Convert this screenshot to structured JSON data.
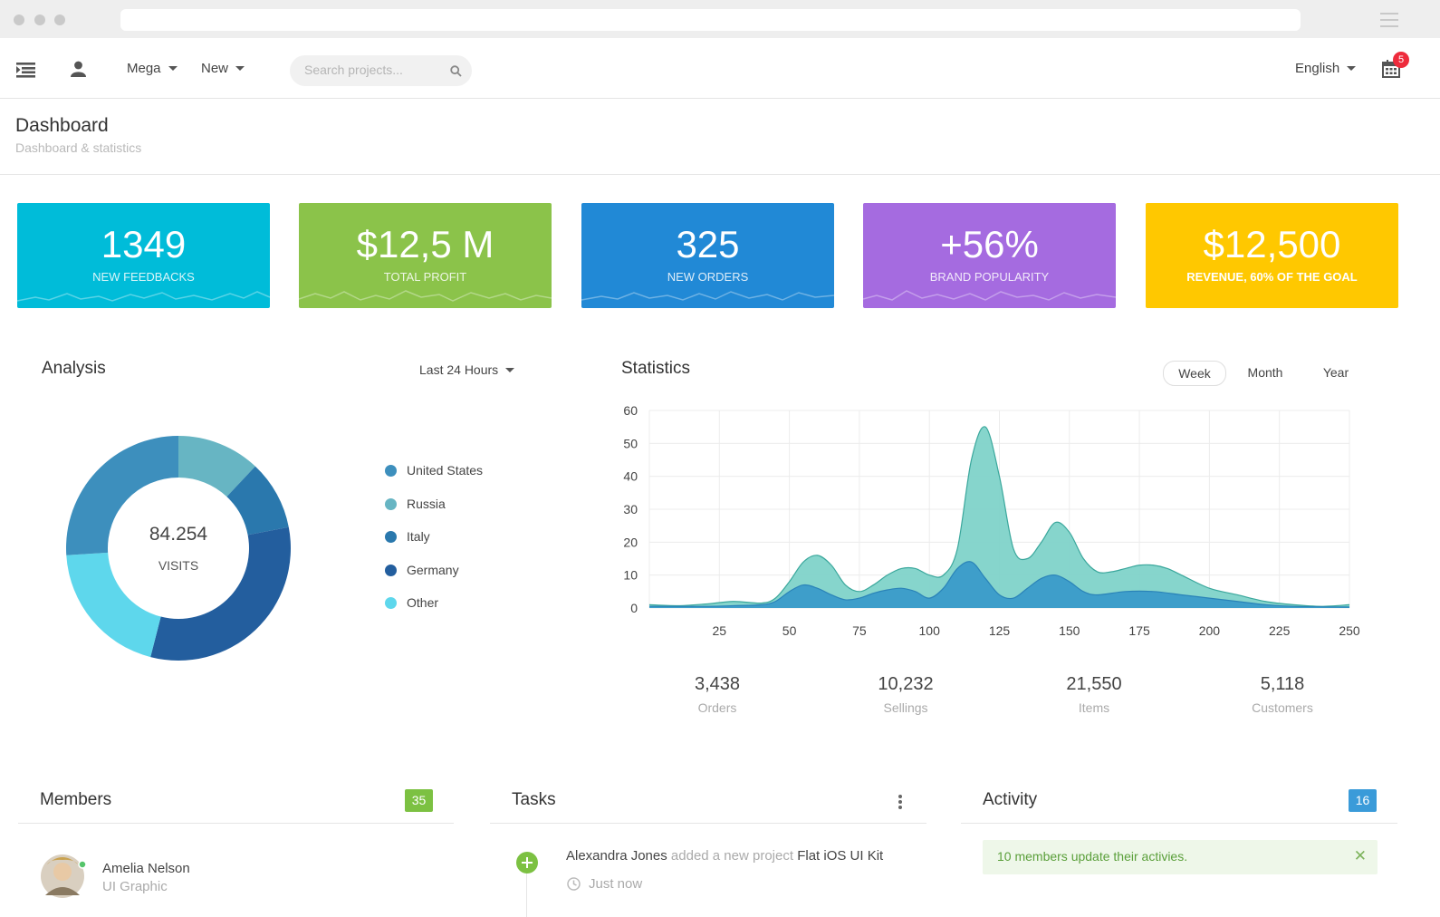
{
  "nav": {
    "mega_label": "Mega",
    "new_label": "New",
    "search_placeholder": "Search projects...",
    "language": "English",
    "calendar_badge": "5"
  },
  "page": {
    "title": "Dashboard",
    "subtitle": "Dashboard & statistics"
  },
  "stat_cards": [
    {
      "value": "1349",
      "label": "New Feedbacks",
      "color": "#00bcd9"
    },
    {
      "value": "$12,5 M",
      "label": "Total Profit",
      "color": "#8bc34a"
    },
    {
      "value": "325",
      "label": "New Orders",
      "color": "#2189d6"
    },
    {
      "value": "+56%",
      "label": "Brand Popularity",
      "color": "#a56be0"
    },
    {
      "value": "$12,500",
      "label": "Revenue, 60% of the goal",
      "color": "#ffc800"
    }
  ],
  "analysis": {
    "title": "Analysis",
    "range": "Last 24 Hours",
    "center_value": "84.254",
    "center_label": "VISITS",
    "legend": [
      {
        "label": "United States",
        "color": "#3d8fbd"
      },
      {
        "label": "Russia",
        "color": "#67b5c3"
      },
      {
        "label": "Italy",
        "color": "#2a78ad"
      },
      {
        "label": "Germany",
        "color": "#235e9e"
      },
      {
        "label": "Other",
        "color": "#5ed7ec"
      }
    ]
  },
  "statistics": {
    "title": "Statistics",
    "tabs": [
      "Week",
      "Month",
      "Year"
    ],
    "active_tab": "Week",
    "summary": [
      {
        "value": "3,438",
        "label": "Orders"
      },
      {
        "value": "10,232",
        "label": "Sellings"
      },
      {
        "value": "21,550",
        "label": "Items"
      },
      {
        "value": "5,118",
        "label": "Customers"
      }
    ]
  },
  "members": {
    "title": "Members",
    "count": "35",
    "items": [
      {
        "name": "Amelia Nelson",
        "role": "UI Graphic"
      }
    ]
  },
  "tasks": {
    "title": "Tasks",
    "items": [
      {
        "user": "Alexandra Jones",
        "action": "added a new project",
        "target": "Flat iOS UI Kit",
        "time": "Just now"
      }
    ]
  },
  "activity": {
    "title": "Activity",
    "count": "16",
    "alert": "10 members update their activies."
  },
  "chart_data": [
    {
      "type": "pie",
      "labels": [
        "United States",
        "Russia",
        "Italy",
        "Germany",
        "Other"
      ],
      "values": [
        26,
        12,
        10,
        32,
        20
      ],
      "colors": [
        "#3d8fbd",
        "#67b5c3",
        "#2a78ad",
        "#235e9e",
        "#5ed7ec"
      ]
    },
    {
      "type": "area",
      "xlim": [
        0,
        250
      ],
      "ylim": [
        0,
        60
      ],
      "xticks": [
        25,
        50,
        75,
        100,
        125,
        150,
        175,
        200,
        225,
        250
      ],
      "yticks": [
        0,
        10,
        20,
        30,
        40,
        50,
        60
      ],
      "grid": true,
      "series": [
        {
          "color": "#7fd3c9",
          "points": [
            [
              0,
              1
            ],
            [
              10,
              0.7
            ],
            [
              20,
              1.2
            ],
            [
              30,
              2
            ],
            [
              40,
              1.5
            ],
            [
              45,
              3
            ],
            [
              50,
              8
            ],
            [
              55,
              14
            ],
            [
              60,
              16
            ],
            [
              65,
              13
            ],
            [
              70,
              7
            ],
            [
              75,
              5
            ],
            [
              80,
              7
            ],
            [
              85,
              10
            ],
            [
              90,
              12
            ],
            [
              95,
              12
            ],
            [
              100,
              10
            ],
            [
              105,
              10
            ],
            [
              110,
              18
            ],
            [
              115,
              45
            ],
            [
              120,
              55
            ],
            [
              125,
              40
            ],
            [
              130,
              18
            ],
            [
              135,
              15
            ],
            [
              140,
              20
            ],
            [
              145,
              26
            ],
            [
              150,
              23
            ],
            [
              155,
              15
            ],
            [
              160,
              11
            ],
            [
              165,
              11
            ],
            [
              170,
              12
            ],
            [
              175,
              13
            ],
            [
              180,
              13
            ],
            [
              185,
              12
            ],
            [
              190,
              10
            ],
            [
              200,
              6
            ],
            [
              210,
              4
            ],
            [
              220,
              2
            ],
            [
              230,
              1
            ],
            [
              240,
              0.5
            ],
            [
              250,
              1
            ]
          ]
        },
        {
          "color": "#3a9bc9",
          "points": [
            [
              0,
              0.5
            ],
            [
              20,
              0.5
            ],
            [
              30,
              0.7
            ],
            [
              40,
              1
            ],
            [
              45,
              2
            ],
            [
              50,
              5
            ],
            [
              55,
              7
            ],
            [
              60,
              6
            ],
            [
              65,
              4
            ],
            [
              70,
              2.5
            ],
            [
              75,
              3
            ],
            [
              80,
              4.5
            ],
            [
              85,
              5.5
            ],
            [
              90,
              6
            ],
            [
              95,
              5
            ],
            [
              100,
              3
            ],
            [
              105,
              6
            ],
            [
              110,
              12
            ],
            [
              115,
              14
            ],
            [
              120,
              9
            ],
            [
              125,
              4
            ],
            [
              130,
              3
            ],
            [
              135,
              6
            ],
            [
              140,
              9
            ],
            [
              145,
              10
            ],
            [
              150,
              8
            ],
            [
              155,
              5
            ],
            [
              160,
              4
            ],
            [
              170,
              5
            ],
            [
              180,
              5
            ],
            [
              190,
              4
            ],
            [
              200,
              3
            ],
            [
              210,
              2
            ],
            [
              220,
              1
            ],
            [
              230,
              0.5
            ],
            [
              250,
              0.3
            ]
          ]
        }
      ]
    }
  ]
}
